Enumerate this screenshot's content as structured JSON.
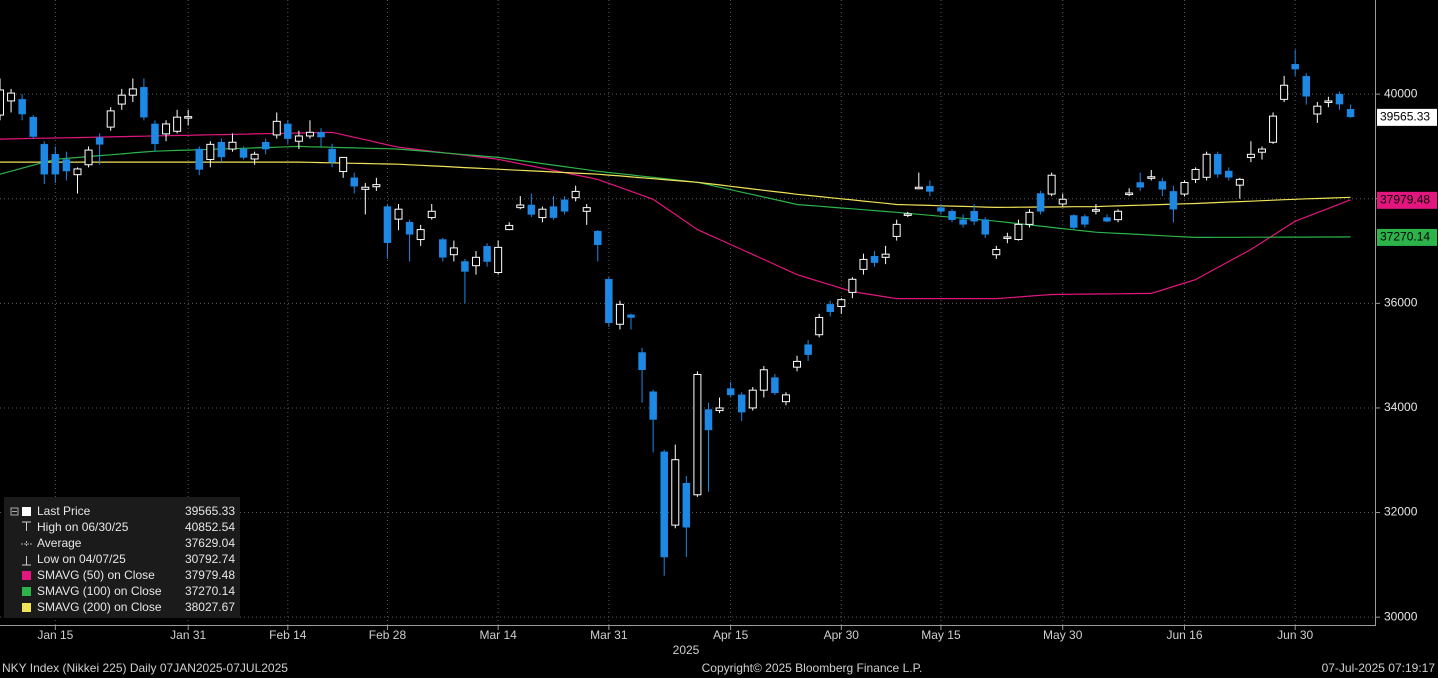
{
  "chart_data": {
    "type": "candlestick",
    "up_color": "#ffffff",
    "down_color": "#1e88e5",
    "categories": [
      null,
      null,
      null,
      null,
      null,
      "Jan 15",
      null,
      null,
      null,
      null,
      null,
      null,
      null,
      null,
      null,
      null,
      null,
      "Jan 31",
      null,
      null,
      null,
      null,
      null,
      null,
      null,
      null,
      "Feb 14",
      null,
      null,
      null,
      null,
      null,
      null,
      null,
      null,
      "Feb 28",
      null,
      null,
      null,
      null,
      null,
      null,
      null,
      null,
      null,
      "Mar 14",
      null,
      null,
      null,
      null,
      null,
      null,
      null,
      null,
      null,
      "Mar 31",
      null,
      null,
      null,
      null,
      null,
      null,
      null,
      null,
      null,
      null,
      "Apr 15",
      null,
      null,
      null,
      null,
      null,
      null,
      null,
      null,
      null,
      "Apr 30",
      null,
      null,
      null,
      null,
      null,
      null,
      null,
      null,
      "May 15",
      null,
      null,
      null,
      null,
      null,
      null,
      null,
      null,
      null,
      null,
      "May 30",
      null,
      null,
      null,
      null,
      null,
      null,
      null,
      null,
      null,
      null,
      "Jun 16",
      null,
      null,
      null,
      null,
      null,
      null,
      null,
      null,
      null,
      "Jun 30",
      null,
      null,
      null,
      null,
      null
    ],
    "xlabel": "2025",
    "open": [
      39600,
      39870,
      39900,
      39560,
      39040,
      38850,
      38750,
      38460,
      38650,
      39170,
      39370,
      39810,
      39980,
      40130,
      39430,
      39240,
      39290,
      39560,
      38950,
      38750,
      39080,
      38950,
      38950,
      38760,
      39080,
      39220,
      39430,
      39100,
      39200,
      39270,
      38950,
      38520,
      38400,
      38180,
      38230,
      37850,
      37610,
      37550,
      37220,
      37640,
      37220,
      36930,
      36800,
      36720,
      37090,
      36590,
      37410,
      37830,
      37880,
      37640,
      37850,
      37980,
      38020,
      37760,
      37380,
      36460,
      35600,
      35780,
      35060,
      34310,
      33160,
      31760,
      32560,
      32340,
      33970,
      33950,
      34370,
      34250,
      34000,
      34340,
      34580,
      34120,
      34780,
      35210,
      35400,
      35980,
      35940,
      36210,
      36650,
      36900,
      36880,
      37280,
      37690,
      38200,
      38240,
      37830,
      37760,
      37600,
      37760,
      37600,
      36930,
      37250,
      37220,
      37510,
      38100,
      38090,
      37900,
      37680,
      37660,
      37770,
      37640,
      37600,
      38080,
      38310,
      38400,
      38330,
      38140,
      38090,
      38370,
      38410,
      38850,
      38530,
      38260,
      38790,
      38890,
      39080,
      39900,
      40570,
      40340,
      39620,
      39850,
      40000,
      39710
    ],
    "high": [
      40300,
      40100,
      40000,
      39600,
      39100,
      39000,
      38900,
      38600,
      39000,
      39250,
      39750,
      40100,
      40300,
      40300,
      39500,
      39500,
      39700,
      39700,
      39000,
      39100,
      39150,
      39250,
      39000,
      38900,
      39150,
      39650,
      39500,
      39300,
      39500,
      39350,
      39050,
      38800,
      38500,
      38300,
      38400,
      37900,
      37900,
      37600,
      37500,
      37900,
      37250,
      37200,
      36850,
      37000,
      37150,
      37200,
      37550,
      38050,
      38100,
      37850,
      38050,
      38050,
      38250,
      37900,
      37400,
      36500,
      36050,
      35800,
      35150,
      34350,
      33200,
      33300,
      32700,
      34700,
      34100,
      34200,
      34500,
      34300,
      34400,
      34800,
      34650,
      34300,
      35000,
      35300,
      35800,
      36050,
      36100,
      36500,
      36950,
      37000,
      37100,
      37600,
      37750,
      38500,
      38350,
      37900,
      37800,
      37700,
      37900,
      37650,
      37100,
      37350,
      37600,
      37800,
      38150,
      38500,
      38100,
      37700,
      37700,
      37900,
      37700,
      37800,
      38200,
      38500,
      38550,
      38400,
      38250,
      38350,
      38600,
      38900,
      38900,
      38600,
      38400,
      39100,
      39000,
      39650,
      40350,
      40852.54,
      40400,
      39850,
      39950,
      40050,
      39800
    ],
    "low": [
      39500,
      39650,
      39500,
      39150,
      38280,
      38300,
      38350,
      38100,
      38600,
      38650,
      39300,
      39700,
      39850,
      39500,
      38900,
      39100,
      39250,
      39400,
      38450,
      38600,
      38700,
      38900,
      38750,
      38650,
      38850,
      39150,
      39050,
      38950,
      39150,
      39000,
      38600,
      38400,
      38100,
      37700,
      38150,
      36850,
      37400,
      36800,
      37100,
      37600,
      36800,
      36800,
      36000,
      36550,
      36700,
      36550,
      37400,
      37800,
      37650,
      37550,
      37600,
      37700,
      37950,
      37500,
      36800,
      35550,
      35500,
      35500,
      34100,
      33150,
      30792.74,
      31700,
      31150,
      32300,
      32400,
      33900,
      34200,
      33750,
      33950,
      34200,
      34250,
      34050,
      34700,
      34900,
      35350,
      35750,
      35800,
      36100,
      36550,
      36700,
      36750,
      37200,
      37650,
      38180,
      38050,
      37700,
      37550,
      37450,
      37500,
      37250,
      36850,
      37150,
      37200,
      37450,
      37700,
      38050,
      37850,
      37400,
      37450,
      37700,
      37550,
      37550,
      38050,
      38150,
      38350,
      38050,
      37550,
      38050,
      38300,
      38350,
      38400,
      38350,
      38000,
      38700,
      38750,
      39050,
      39850,
      40350,
      39800,
      39450,
      39750,
      39700,
      39550
    ],
    "close": [
      40080,
      40020,
      39620,
      39190,
      38470,
      38470,
      38530,
      38570,
      38930,
      39040,
      39680,
      39980,
      40100,
      39560,
      39050,
      39430,
      39560,
      39570,
      38560,
      39040,
      38800,
      39080,
      38790,
      38850,
      38950,
      39480,
      39150,
      39200,
      39270,
      39180,
      38700,
      38790,
      38240,
      38220,
      38270,
      37160,
      37800,
      37320,
      37410,
      37760,
      36880,
      37060,
      36610,
      36880,
      36800,
      37070,
      37490,
      37880,
      37700,
      37800,
      37640,
      37760,
      38140,
      37830,
      37120,
      35630,
      35980,
      35730,
      34730,
      33780,
      31150,
      33010,
      31720,
      34640,
      33580,
      34000,
      34250,
      33920,
      34340,
      34730,
      34290,
      34250,
      34890,
      35020,
      35730,
      35840,
      36070,
      36460,
      36840,
      36780,
      36940,
      37510,
      37710,
      38220,
      38140,
      37760,
      37600,
      37510,
      37570,
      37320,
      37030,
      37270,
      37510,
      37740,
      37760,
      38450,
      37990,
      37450,
      37510,
      37790,
      37570,
      37760,
      38110,
      38220,
      38420,
      38180,
      37800,
      38310,
      38560,
      38850,
      38470,
      38410,
      38370,
      38850,
      38950,
      39580,
      40170,
      40480,
      39960,
      39770,
      39870,
      39810,
      39565.33
    ],
    "series": [
      {
        "name": "SMAVG (50) on Close",
        "color": "#e3167f",
        "values": [
          39140,
          39144,
          39149,
          39153,
          39157,
          39162,
          39166,
          39170,
          39175,
          39179,
          39183,
          39188,
          39192,
          39196,
          39201,
          39205,
          39209,
          39214,
          39218,
          39222,
          39227,
          39231,
          39235,
          39240,
          39244,
          39248,
          39253,
          39257,
          39261,
          39266,
          39270,
          39222,
          39175,
          39128,
          39080,
          39032,
          38985,
          38959,
          38934,
          38908,
          38883,
          38857,
          38832,
          38806,
          38781,
          38755,
          38712,
          38669,
          38627,
          38584,
          38541,
          38498,
          38455,
          38413,
          38370,
          38294,
          38218,
          38142,
          38066,
          37990,
          37845,
          37700,
          37555,
          37410,
          37315,
          37220,
          37125,
          37030,
          36935,
          36839,
          36743,
          36646,
          36550,
          36485,
          36420,
          36355,
          36290,
          36225,
          36191,
          36158,
          36124,
          36090,
          36090,
          36090,
          36090,
          36090,
          36090,
          36090,
          36090,
          36090,
          36090,
          36106,
          36122,
          36138,
          36154,
          36170,
          36172,
          36174,
          36177,
          36179,
          36181,
          36183,
          36186,
          36188,
          36190,
          36256,
          36323,
          36389,
          36455,
          36570,
          36685,
          36800,
          36915,
          37030,
          37165,
          37300,
          37435,
          37570,
          37652,
          37734,
          37816,
          37898,
          37979.48
        ]
      },
      {
        "name": "SMAVG (100) on Close",
        "color": "#2cb34a",
        "values": [
          38470,
          38527,
          38584,
          38641,
          38698,
          38755,
          38772,
          38789,
          38807,
          38824,
          38841,
          38858,
          38876,
          38893,
          38910,
          38917,
          38924,
          38931,
          38938,
          38945,
          38952,
          38959,
          38965,
          38972,
          38979,
          38986,
          38993,
          39000,
          38994,
          38989,
          38983,
          38978,
          38972,
          38967,
          38961,
          38956,
          38950,
          38932,
          38914,
          38897,
          38879,
          38861,
          38843,
          38826,
          38808,
          38790,
          38761,
          38731,
          38702,
          38672,
          38643,
          38614,
          38584,
          38555,
          38525,
          38502,
          38478,
          38455,
          38432,
          38408,
          38385,
          38362,
          38338,
          38315,
          38268,
          38221,
          38173,
          38126,
          38079,
          38032,
          37985,
          37937,
          37890,
          37873,
          37857,
          37840,
          37823,
          37807,
          37790,
          37773,
          37757,
          37740,
          37721,
          37702,
          37683,
          37664,
          37646,
          37627,
          37608,
          37589,
          37570,
          37547,
          37523,
          37500,
          37477,
          37453,
          37430,
          37407,
          37383,
          37360,
          37349,
          37338,
          37327,
          37316,
          37304,
          37293,
          37282,
          37271,
          37260,
          37261,
          37262,
          37262,
          37263,
          37264,
          37264,
          37265,
          37266,
          37266,
          37267,
          37268,
          37268,
          37269,
          37270.14
        ]
      },
      {
        "name": "SMAVG (200) on Close",
        "color": "#f0e35a",
        "values": [
          38700,
          38700,
          38700,
          38700,
          38700,
          38700,
          38700,
          38700,
          38700,
          38700,
          38700,
          38700,
          38700,
          38700,
          38700,
          38700,
          38700,
          38700,
          38700,
          38700,
          38700,
          38700,
          38700,
          38700,
          38700,
          38700,
          38700,
          38700,
          38696,
          38691,
          38687,
          38682,
          38678,
          38673,
          38669,
          38664,
          38660,
          38649,
          38639,
          38628,
          38618,
          38607,
          38596,
          38586,
          38575,
          38565,
          38554,
          38544,
          38533,
          38523,
          38512,
          38501,
          38491,
          38480,
          38470,
          38453,
          38436,
          38418,
          38401,
          38384,
          38367,
          38349,
          38332,
          38315,
          38289,
          38264,
          38238,
          38213,
          38187,
          38162,
          38136,
          38111,
          38085,
          38063,
          38042,
          38020,
          37998,
          37977,
          37955,
          37933,
          37912,
          37890,
          37884,
          37878,
          37872,
          37866,
          37860,
          37853,
          37847,
          37841,
          37835,
          37837,
          37838,
          37840,
          37842,
          37843,
          37845,
          37847,
          37848,
          37850,
          37857,
          37863,
          37870,
          37877,
          37883,
          37890,
          37897,
          37903,
          37910,
          37919,
          37928,
          37937,
          37946,
          37954,
          37963,
          37972,
          37981,
          37990,
          37998,
          38005,
          38013,
          38020,
          38027.67
        ]
      }
    ],
    "stats": [
      {
        "label": "Last Price",
        "value": "39565.33"
      },
      {
        "label": "High on 06/30/25",
        "value": "40852.54"
      },
      {
        "label": "Average",
        "value": "37629.04"
      },
      {
        "label": "Low on 04/07/25",
        "value": "30792.74"
      }
    ],
    "ylim": [
      29850,
      41800
    ],
    "yticks": [
      30000,
      32000,
      34000,
      36000,
      38000,
      40000
    ],
    "grid": true,
    "footer": {
      "left": "NKY Index (Nikkei 225)  Daily 07JAN2025-07JUL2025",
      "center": "Copyright© 2025 Bloomberg Finance L.P.",
      "right": "07-Jul-2025 07:19:17"
    }
  }
}
